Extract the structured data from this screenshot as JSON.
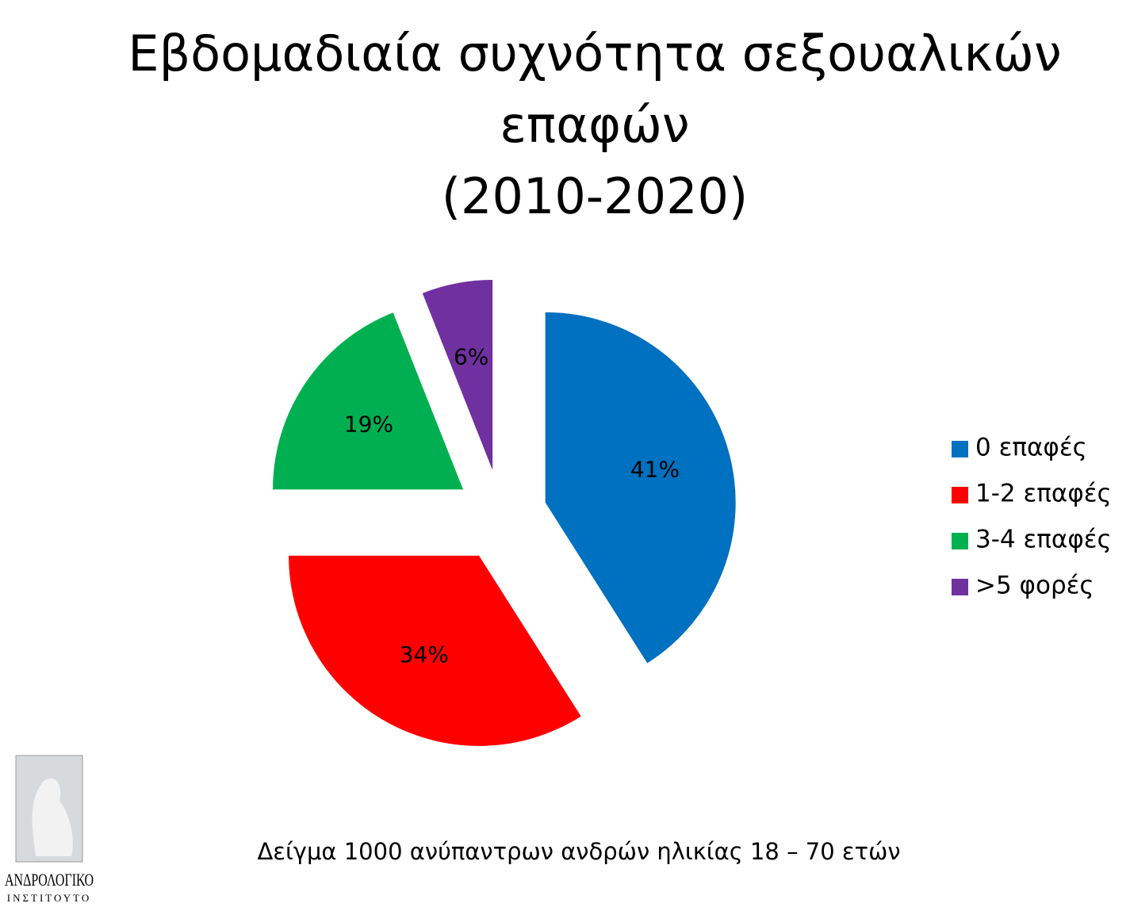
{
  "chart_data": {
    "type": "pie",
    "title": [
      "Εβδομαδιαία συχνότητα σεξουαλικών",
      "επαφών"
    ],
    "subtitle": "(2010-2020)",
    "categories": [
      "0 επαφές",
      "1-2 επαφές",
      "3-4 επαφές",
      ">5 φορές"
    ],
    "values": [
      41,
      34,
      19,
      6
    ],
    "value_labels": [
      "41%",
      "34%",
      "19%",
      "6%"
    ],
    "colors": [
      "#0070c0",
      "#ff0000",
      "#00b050",
      "#7030a0"
    ],
    "legend": "right",
    "note": "Δείγμα 1000 ανύπαντρων ανδρών ηλικίας 18 – 70 ετών"
  },
  "logo": {
    "name": "ΑΝΔΡΟΛΟΓΙΚΟ",
    "subtitle": "ΙΝΣΤΙΤΟΥΤΟ"
  }
}
